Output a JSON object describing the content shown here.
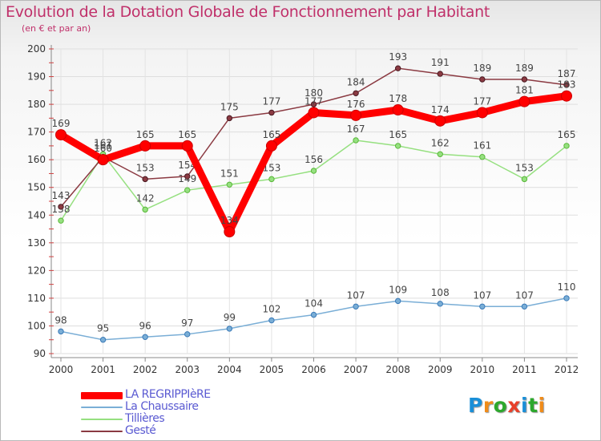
{
  "header": {
    "title": "Evolution de la Dotation Globale de Fonctionnement par Habitant",
    "subtitle": "(en € et par an)"
  },
  "logo": {
    "letters": [
      "P",
      "r",
      "o",
      "x",
      "i",
      "t",
      "i"
    ],
    "colors": [
      "#1a8fd8",
      "#f08c1a",
      "#2da82d",
      "#e8402a",
      "#1a8fd8",
      "#2da82d",
      "#f08c1a"
    ]
  },
  "chart_data": {
    "type": "line",
    "title": "Evolution de la Dotation Globale de Fonctionnement par Habitant",
    "subtitle": "(en € et par an)",
    "xlabel": "",
    "ylabel": "",
    "x": [
      "2000",
      "2001",
      "2002",
      "2003",
      "2004",
      "2005",
      "2006",
      "2007",
      "2008",
      "2009",
      "2010",
      "2011",
      "2012"
    ],
    "ylim": [
      90,
      200
    ],
    "yticks": [
      90,
      100,
      110,
      120,
      130,
      140,
      150,
      160,
      170,
      180,
      190,
      200
    ],
    "grid": true,
    "legend": "bottom-left",
    "series": [
      {
        "name": "LA REGRIPPIèRE",
        "color": "#ff0000",
        "width": 9,
        "values": [
          169,
          160,
          165,
          165,
          134,
          165,
          177,
          176,
          178,
          174,
          177,
          181,
          183
        ],
        "labels": [
          "169",
          "160",
          "165",
          "165",
          "134",
          "165",
          "177",
          "176",
          "178",
          "174",
          "177",
          "181",
          "183"
        ]
      },
      {
        "name": "La Chaussaire",
        "color": "#7aaed6",
        "width": 1.5,
        "values": [
          98,
          95,
          96,
          97,
          99,
          102,
          104,
          107,
          109,
          108,
          107,
          107,
          110
        ],
        "labels": [
          "98",
          "95",
          "96",
          "97",
          "99",
          "102",
          "104",
          "107",
          "109",
          "108",
          "107",
          "107",
          "110"
        ]
      },
      {
        "name": "Tillières",
        "color": "#96e080",
        "width": 1.5,
        "values": [
          138,
          162,
          142,
          149,
          151,
          153,
          156,
          167,
          165,
          162,
          161,
          153,
          165
        ],
        "labels": [
          "138",
          "162",
          "142",
          "149",
          "151",
          "153",
          "156",
          "167",
          "165",
          "162",
          "161",
          "153",
          "165"
        ]
      },
      {
        "name": "Gesté",
        "color": "#8b3a42",
        "width": 1.5,
        "values": [
          143,
          161,
          153,
          154,
          175,
          177,
          180,
          184,
          193,
          191,
          189,
          189,
          187
        ],
        "labels": [
          "143",
          "161",
          "153",
          "154",
          "175",
          "177",
          "180",
          "184",
          "193",
          "191",
          "189",
          "189",
          "187"
        ]
      }
    ]
  }
}
